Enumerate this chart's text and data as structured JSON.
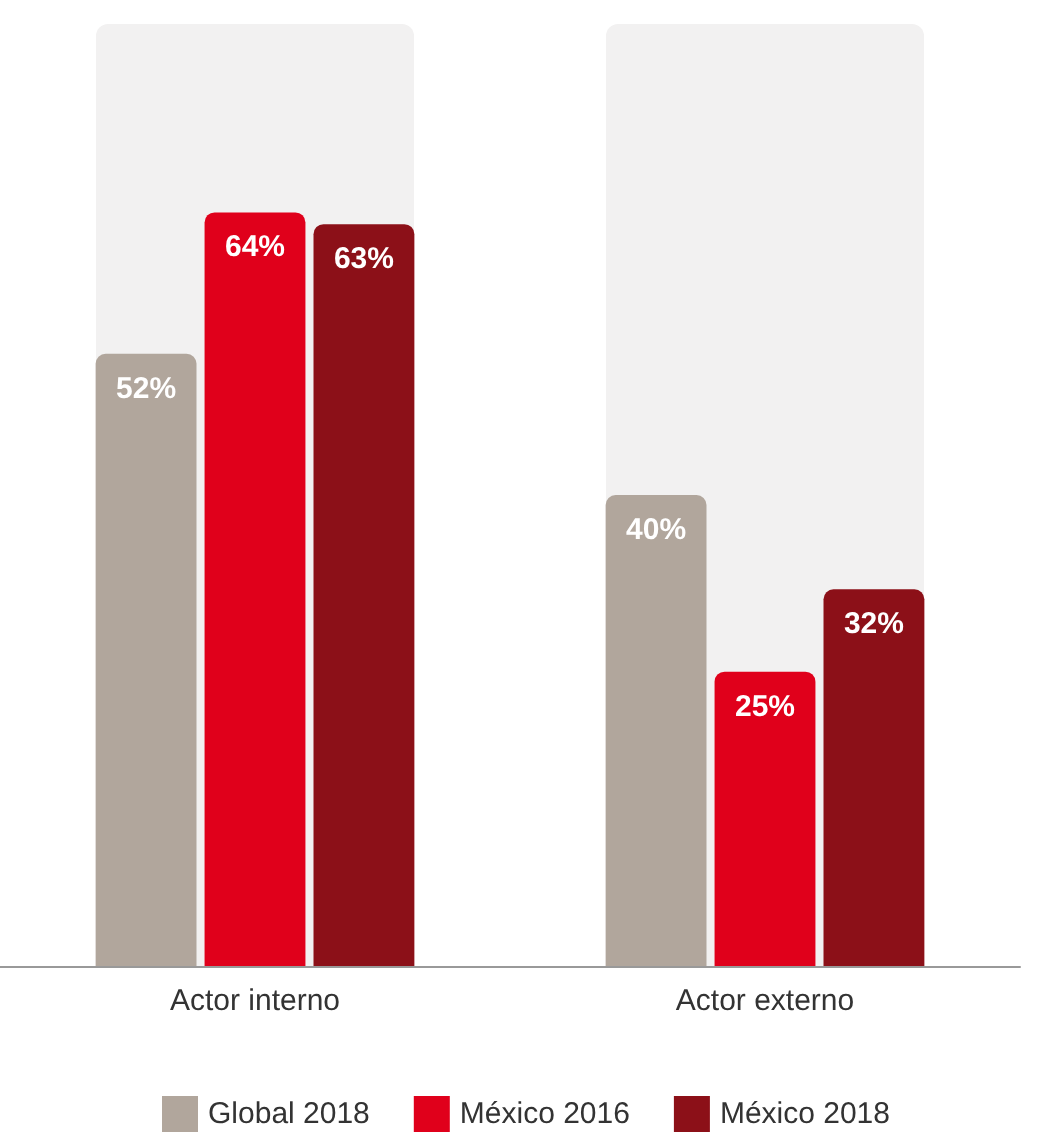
{
  "chart_data": {
    "type": "bar",
    "categories": [
      "Actor interno",
      "Actor externo"
    ],
    "series": [
      {
        "name": "Global 2018",
        "color": "#b1a69c",
        "values": [
          52,
          40
        ],
        "value_labels": [
          "52%",
          "40%"
        ]
      },
      {
        "name": "México 2016",
        "color": "#e0001b",
        "values": [
          64,
          25
        ],
        "value_labels": [
          "64%",
          "25%"
        ]
      },
      {
        "name": "México 2018",
        "color": "#8c1018",
        "values": [
          63,
          32
        ],
        "value_labels": [
          "63%",
          "32%"
        ]
      }
    ],
    "bands": [
      {
        "axis": "x",
        "from": "Actor interno",
        "to": "Actor interno",
        "color": "#f2f1f1"
      },
      {
        "axis": "x",
        "from": "Actor externo",
        "to": "Actor externo",
        "color": "#f2f1f1"
      }
    ],
    "legend": "bottom"
  }
}
